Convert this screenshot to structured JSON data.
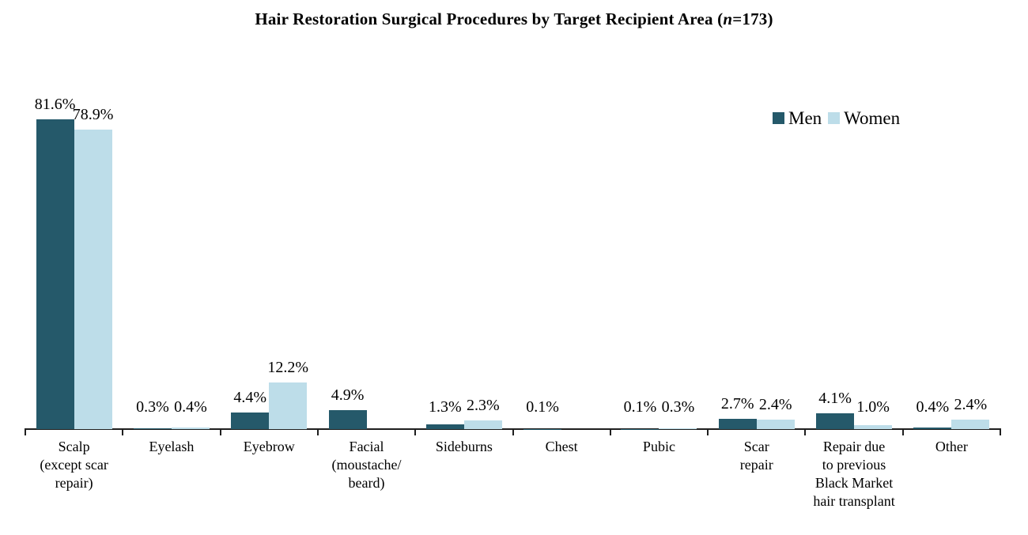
{
  "title": {
    "prefix": "Hair Restoration Surgical Procedures by Target Recipient Area (",
    "italic_n": "n",
    "suffix": "=173)"
  },
  "legend": {
    "position": "top-right-inside",
    "items": [
      {
        "label": "Men",
        "color": "#25596A"
      },
      {
        "label": "Women",
        "color": "#BDDDE9"
      }
    ]
  },
  "colors": {
    "men": "#25596A",
    "women": "#BDDDE9",
    "axis": "#1f1f1f",
    "background": "#ffffff",
    "text": "#000000"
  },
  "chart_data": {
    "type": "bar",
    "title": "Hair Restoration Surgical Procedures by Target Recipient Area (n=173)",
    "xlabel": "",
    "ylabel": "",
    "ylim": [
      0,
      85
    ],
    "value_axis_visible": false,
    "grid": false,
    "legend_position": "top-right-inside",
    "categories": [
      "Scalp (except scar repair)",
      "Eyelash",
      "Eyebrow",
      "Facial (moustache/beard)",
      "Sideburns",
      "Chest",
      "Pubic",
      "Scar repair",
      "Repair due to previous Black Market hair transplant",
      "Other"
    ],
    "category_lines": [
      [
        "Scalp",
        "(except scar",
        "repair)"
      ],
      [
        "Eyelash"
      ],
      [
        "Eyebrow"
      ],
      [
        "Facial",
        "(moustache/",
        "beard)"
      ],
      [
        "Sideburns"
      ],
      [
        "Chest"
      ],
      [
        "Pubic"
      ],
      [
        "Scar",
        "repair"
      ],
      [
        "Repair due",
        "to previous",
        "Black Market",
        "hair transplant"
      ],
      [
        "Other"
      ]
    ],
    "series": [
      {
        "name": "Men",
        "color": "#25596A",
        "values": [
          81.6,
          0.3,
          4.4,
          4.9,
          1.3,
          0.1,
          0.1,
          2.7,
          4.1,
          0.4
        ],
        "labels": [
          "81.6%",
          "0.3%",
          "4.4%",
          "4.9%",
          "1.3%",
          "0.1%",
          "0.1%",
          "2.7%",
          "4.1%",
          "0.4%"
        ]
      },
      {
        "name": "Women",
        "color": "#BDDDE9",
        "values": [
          78.9,
          0.4,
          12.2,
          null,
          2.3,
          null,
          0.3,
          2.4,
          1.0,
          2.4
        ],
        "labels": [
          "78.9%",
          "0.4%",
          "12.2%",
          null,
          "2.3%",
          null,
          "0.3%",
          "2.4%",
          "1.0%",
          "2.4%"
        ]
      }
    ]
  }
}
